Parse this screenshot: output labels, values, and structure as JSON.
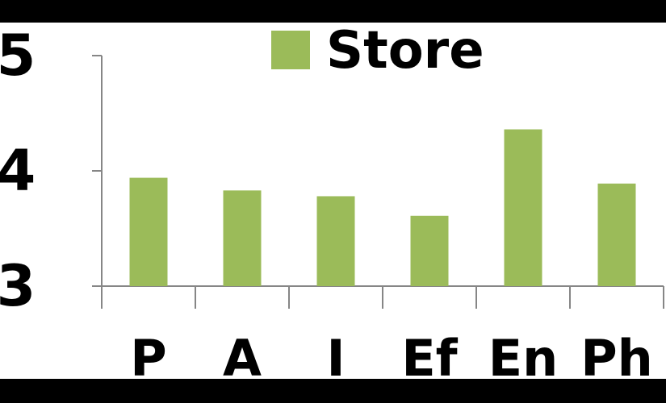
{
  "chart_data": {
    "type": "bar",
    "categories": [
      "P",
      "A",
      "I",
      "Ef",
      "En",
      "Ph"
    ],
    "series": [
      {
        "name": "Store",
        "values": [
          3.94,
          3.83,
          3.78,
          3.61,
          4.36,
          3.89
        ]
      }
    ],
    "ylim": [
      3,
      5
    ],
    "yticks": [
      "3",
      "4",
      "5"
    ],
    "title": "",
    "xlabel": "",
    "ylabel": "",
    "legend_position": "top-center",
    "grid": false,
    "colors": {
      "bar": "#9BBB59",
      "axis": "#868686",
      "background": "#FFFFFF",
      "border": "#000000"
    }
  }
}
